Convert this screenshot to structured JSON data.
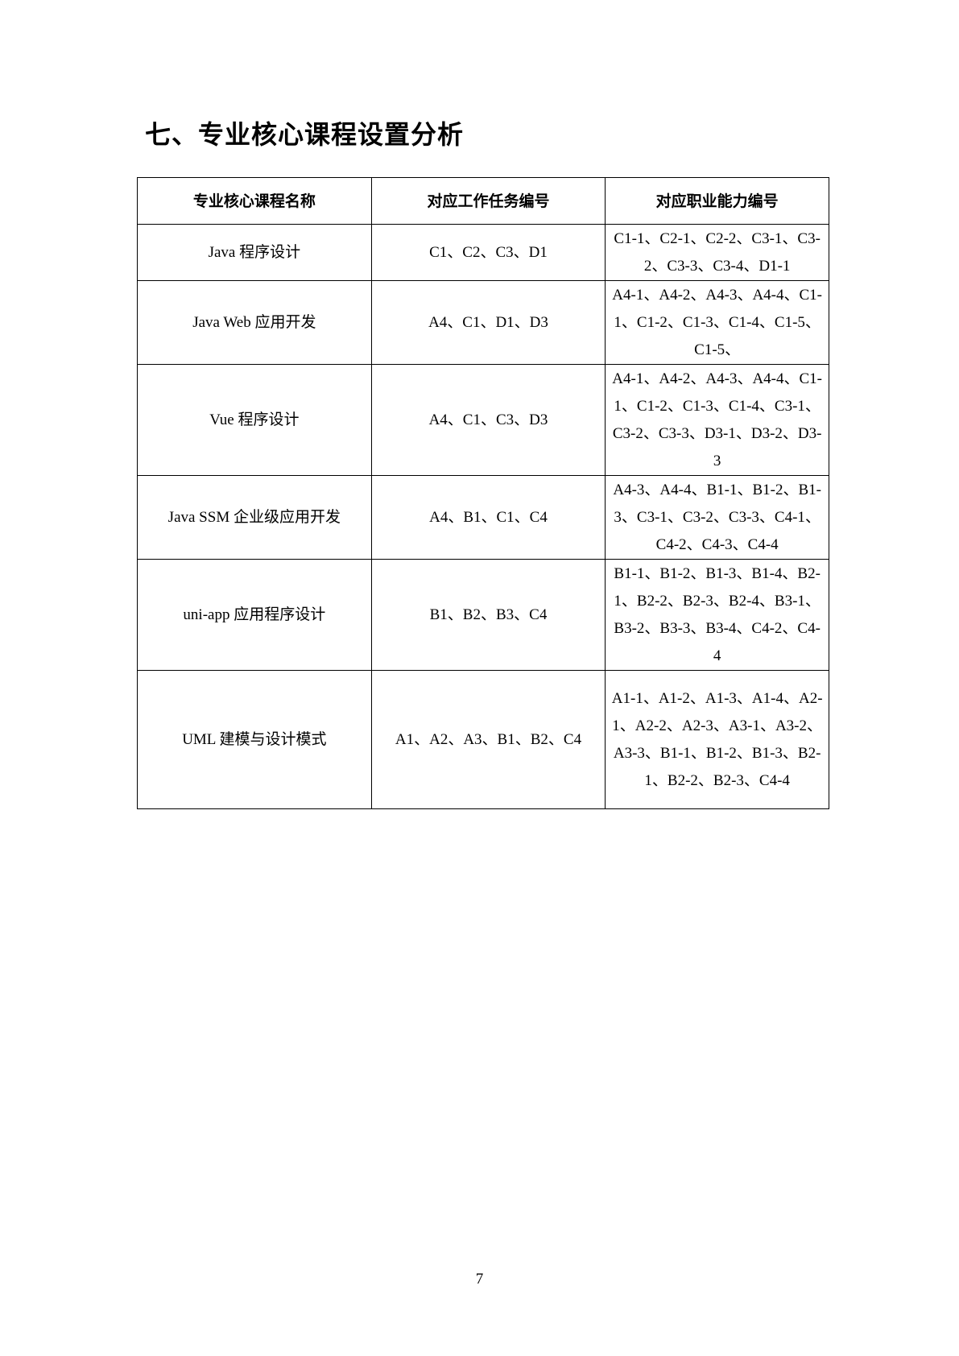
{
  "section_title": "七、专业核心课程设置分析",
  "table": {
    "headers": [
      "专业核心课程名称",
      "对应工作任务编号",
      "对应职业能力编号"
    ],
    "rows": [
      {
        "course": "Java 程序设计",
        "tasks": "C1、C2、C3、D1",
        "abilities": "C1-1、C2-1、C2-2、C3-1、C3-2、C3-3、C3-4、D1-1"
      },
      {
        "course": "Java Web 应用开发",
        "tasks": "A4、C1、D1、D3",
        "abilities": "A4-1、A4-2、A4-3、A4-4、C1-1、C1-2、C1-3、C1-4、C1-5、C1-5、"
      },
      {
        "course": "Vue 程序设计",
        "tasks": "A4、C1、C3、D3",
        "abilities": "A4-1、A4-2、A4-3、A4-4、C1-1、C1-2、C1-3、C1-4、C3-1、C3-2、C3-3、D3-1、D3-2、D3-3"
      },
      {
        "course": "Java SSM 企业级应用开发",
        "tasks": "A4、B1、C1、C4",
        "abilities": "A4-3、A4-4、B1-1、B1-2、B1-3、C3-1、C3-2、C3-3、C4-1、C4-2、C4-3、C4-4"
      },
      {
        "course": "uni-app 应用程序设计",
        "tasks": "B1、B2、B3、C4",
        "abilities": "B1-1、B1-2、B1-3、B1-4、B2-1、B2-2、B2-3、B2-4、B3-1、B3-2、B3-3、B3-4、C4-2、C4-4"
      },
      {
        "course": "UML 建模与设计模式",
        "tasks": "A1、A2、A3、B1、B2、C4",
        "abilities": "A1-1、A1-2、A1-3、A1-4、A2-1、A2-2、A2-3、A3-1、A3-2、A3-3、B1-1、B1-2、B1-3、B2-1、B2-2、B2-3、C4-4"
      }
    ]
  },
  "page_number": "7"
}
